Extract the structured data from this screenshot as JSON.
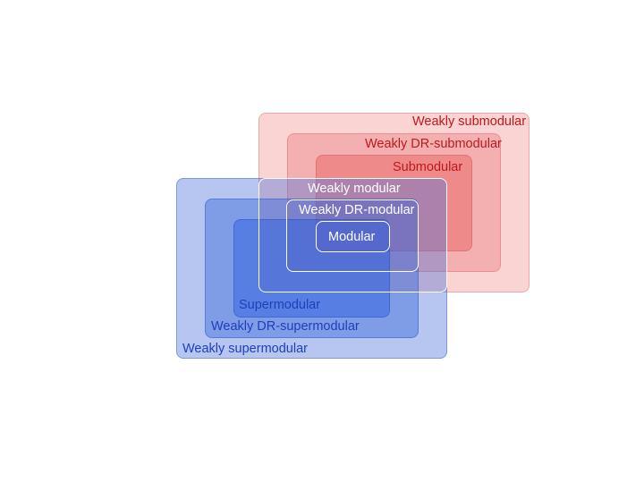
{
  "diagram": {
    "sets": {
      "weakly_submodular": "Weakly submodular",
      "weakly_dr_submodular": "Weakly DR-submodular",
      "submodular": "Submodular",
      "weakly_modular": "Weakly modular",
      "weakly_dr_modular": "Weakly DR-modular",
      "modular": "Modular",
      "supermodular": "Supermodular",
      "weakly_dr_supermodular": "Weakly DR-supermodular",
      "weakly_supermodular": "Weakly supermodular"
    },
    "colors": {
      "submodular_family": "#e57373",
      "supermodular_family": "#3f6fd8",
      "modular_family": "#ffffff",
      "submodular_text": "#c0181c",
      "supermodular_text": "#1c3fbd"
    }
  }
}
